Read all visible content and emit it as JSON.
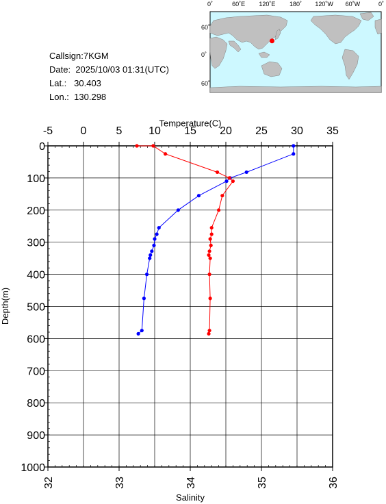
{
  "station": {
    "callsign_label": "Callsign:",
    "callsign": "7KGM",
    "date_label": "Date:",
    "date": "2025/10/03 01:31(UTC)",
    "lat_label": "Lat.:",
    "lat": "30.403",
    "lon_label": "Lon.:",
    "lon": "130.298"
  },
  "map": {
    "top_labels": [
      "0˚",
      "60˚E",
      "120˚E",
      "180˚",
      "120˚W",
      "60˚W",
      "0˚"
    ],
    "right_labels": [
      "60˚N",
      "0˚",
      "60˚S"
    ],
    "ocean_color": "#cdf8ff",
    "land_color": "#c0c0c0",
    "marker_color": "#ff0000"
  },
  "chart_data": {
    "type": "line",
    "title": "",
    "top_axis": {
      "label": "Temperature(C)",
      "range": [
        -5,
        35
      ],
      "ticks": [
        "-5",
        "0",
        "5",
        "10",
        "15",
        "20",
        "25",
        "30",
        "35"
      ]
    },
    "bottom_axis": {
      "label": "Salinity",
      "range": [
        32,
        36
      ],
      "ticks": [
        "32",
        "33",
        "34",
        "35",
        "36"
      ]
    },
    "y_axis": {
      "label": "Depth(m)",
      "range": [
        0,
        1000
      ],
      "inverted": true,
      "ticks": [
        "0",
        "100",
        "200",
        "300",
        "400",
        "500",
        "600",
        "700",
        "800",
        "900",
        "1000"
      ]
    },
    "grid": true,
    "series": [
      {
        "axis": "temperature",
        "color": "#0000ff",
        "points": [
          [
            29.5,
            0
          ],
          [
            29.5,
            25
          ],
          [
            22.9,
            82
          ],
          [
            20.6,
            100
          ],
          [
            20.1,
            110
          ],
          [
            16.2,
            155
          ],
          [
            13.3,
            200
          ],
          [
            10.6,
            255
          ],
          [
            10.3,
            275
          ],
          [
            10.0,
            290
          ],
          [
            9.9,
            310
          ],
          [
            9.6,
            328
          ],
          [
            9.4,
            340
          ],
          [
            9.3,
            350
          ],
          [
            8.9,
            400
          ],
          [
            8.5,
            475
          ],
          [
            8.2,
            575
          ],
          [
            7.7,
            585
          ]
        ]
      },
      {
        "axis": "salinity",
        "color": "#ff0000",
        "points": [
          [
            33.25,
            0
          ],
          [
            33.48,
            0
          ],
          [
            33.65,
            25
          ],
          [
            34.38,
            82
          ],
          [
            34.55,
            100
          ],
          [
            34.6,
            110
          ],
          [
            34.45,
            155
          ],
          [
            34.4,
            200
          ],
          [
            34.3,
            255
          ],
          [
            34.3,
            275
          ],
          [
            34.28,
            290
          ],
          [
            34.29,
            310
          ],
          [
            34.27,
            328
          ],
          [
            34.26,
            340
          ],
          [
            34.28,
            350
          ],
          [
            34.27,
            400
          ],
          [
            34.28,
            475
          ],
          [
            34.27,
            575
          ],
          [
            34.26,
            585
          ]
        ]
      }
    ]
  }
}
